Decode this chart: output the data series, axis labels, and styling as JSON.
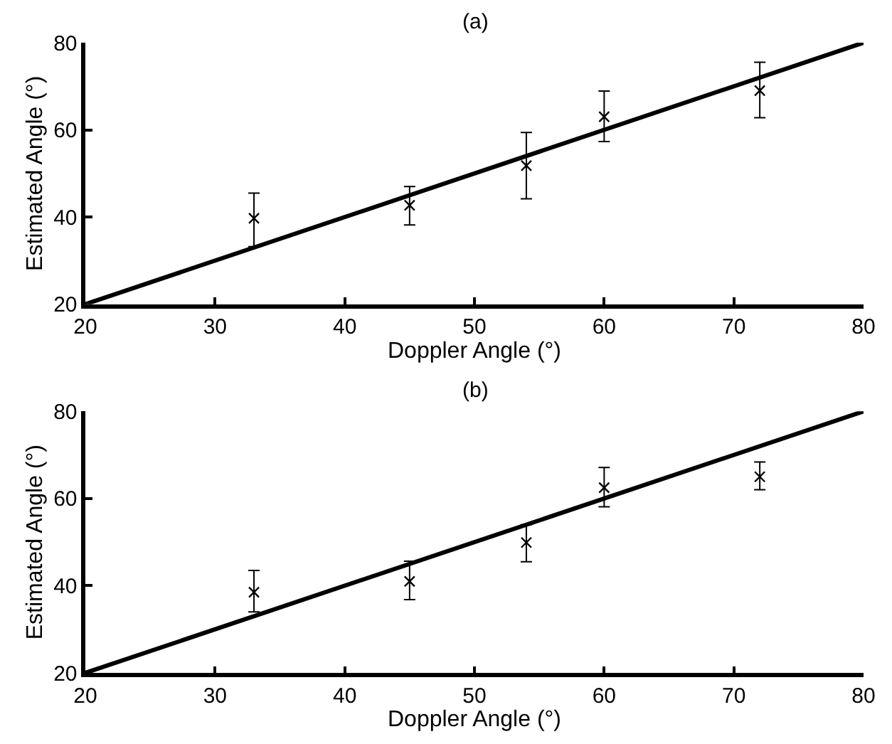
{
  "chart_data": [
    {
      "type": "scatter",
      "title": "(a)",
      "xlabel": "Doppler Angle (°)",
      "ylabel": "Estimated Angle (°)",
      "xlim": [
        20,
        80
      ],
      "xticks": [
        20,
        30,
        40,
        50,
        60,
        70,
        80
      ],
      "ylim": [
        20,
        80
      ],
      "yticks": [
        20,
        40,
        60,
        80
      ],
      "marker": "cross",
      "series": [
        {
          "type": "line",
          "color": "#000000",
          "x": [
            20,
            80
          ],
          "values": [
            20,
            80
          ],
          "marker": "none",
          "line_style": "solid"
        },
        {
          "color": "#000000",
          "x": [
            33,
            45,
            54,
            60,
            72
          ],
          "values": [
            39.7,
            42.7,
            51.8,
            63,
            69
          ],
          "errors": [
            [
              33.2,
              45.5
            ],
            [
              38.2,
              47
            ],
            [
              44.2,
              59.4
            ],
            [
              57.3,
              68.9
            ],
            [
              62.8,
              75.5
            ]
          ]
        }
      ]
    },
    {
      "type": "scatter",
      "title": "(b)",
      "xlabel": "Doppler Angle (°)",
      "ylabel": "Estimated Angle (°)",
      "xlim": [
        20,
        80
      ],
      "xticks": [
        20,
        30,
        40,
        50,
        60,
        70,
        80
      ],
      "ylim": [
        20,
        80
      ],
      "yticks": [
        20,
        40,
        60,
        80
      ],
      "marker": "cross",
      "series": [
        {
          "type": "line",
          "color": "#000000",
          "x": [
            20,
            80
          ],
          "values": [
            20,
            80
          ],
          "marker": "none",
          "line_style": "solid"
        },
        {
          "color": "#000000",
          "x": [
            33,
            45,
            54,
            60,
            72
          ],
          "values": [
            38.5,
            41,
            49.9,
            62.5,
            65
          ],
          "errors": [
            [
              34,
              43.5
            ],
            [
              36.8,
              45.6
            ],
            [
              45.5,
              54
            ],
            [
              58.1,
              67.1
            ],
            [
              62,
              68.4
            ]
          ]
        }
      ]
    }
  ]
}
